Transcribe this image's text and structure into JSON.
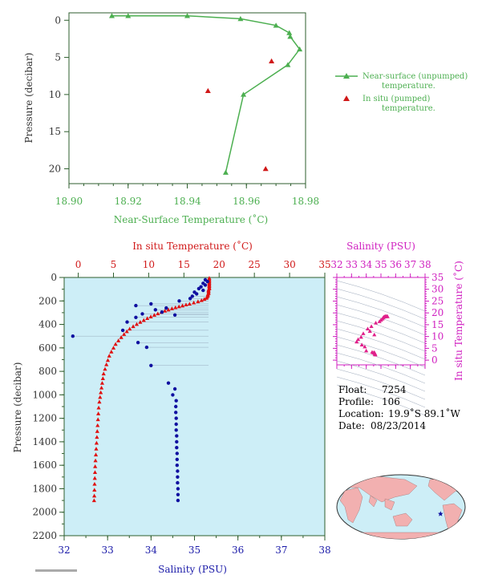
{
  "chart_data": [
    {
      "id": "top",
      "type": "line",
      "xlabel": "Near-Surface Temperature (˚C)",
      "ylabel": "Pressure (decibar)",
      "xlim": [
        18.9,
        18.98
      ],
      "ylim": [
        22,
        -1
      ],
      "xticks": [
        "18.90",
        "18.92",
        "18.94",
        "18.96",
        "18.98"
      ],
      "yticks": [
        "0",
        "5",
        "10",
        "15",
        "20"
      ],
      "colors": {
        "near_surface": "#4caf50",
        "in_situ": "#d01818"
      },
      "series": [
        {
          "name": "Near-surface (unpumped) temperature.",
          "points": [
            [
              18.9145,
              -0.6
            ],
            [
              18.92,
              -0.6
            ],
            [
              18.94,
              -0.6
            ],
            [
              18.958,
              -0.2
            ],
            [
              18.97,
              0.7
            ],
            [
              18.9745,
              1.7
            ],
            [
              18.9748,
              2.2
            ],
            [
              18.978,
              3.9
            ],
            [
              18.974,
              6.0
            ],
            [
              18.959,
              10.0
            ],
            [
              18.953,
              20.5
            ]
          ]
        },
        {
          "name": "In situ (pumped) temperature.",
          "points": [
            [
              18.9685,
              5.5
            ],
            [
              18.947,
              9.5
            ],
            [
              18.9665,
              20.0
            ]
          ]
        }
      ],
      "legend": [
        "Near-surface (unpumped)",
        "temperature.",
        "In situ (pumped)",
        "temperature."
      ]
    },
    {
      "id": "main",
      "type": "scatter",
      "title_top": "In situ Temperature (˚C)",
      "xlabel": "Salinity (PSU)",
      "ylabel": "Pressure (decibar)",
      "temp_lim": [
        -2,
        35
      ],
      "sal_lim": [
        32,
        38
      ],
      "ylim": [
        2200,
        0
      ],
      "temp_ticks": [
        "0",
        "5",
        "10",
        "15",
        "20",
        "25",
        "30",
        "35"
      ],
      "sal_ticks": [
        "32",
        "33",
        "34",
        "35",
        "36",
        "37",
        "38"
      ],
      "y_ticks": [
        "0",
        "200",
        "400",
        "600",
        "800",
        "1000",
        "1200",
        "1400",
        "1600",
        "1800",
        "2000",
        "2200"
      ],
      "colors": {
        "temperature": "#e01010",
        "salinity": "#1010a0",
        "background": "#cdeef7"
      },
      "temperature": [
        [
          18.6,
          5
        ],
        [
          18.6,
          15
        ],
        [
          18.6,
          25
        ],
        [
          18.6,
          35
        ],
        [
          18.6,
          45
        ],
        [
          18.6,
          55
        ],
        [
          18.6,
          65
        ],
        [
          18.6,
          75
        ],
        [
          18.6,
          85
        ],
        [
          18.6,
          95
        ],
        [
          18.5,
          105
        ],
        [
          18.5,
          115
        ],
        [
          18.5,
          125
        ],
        [
          18.5,
          135
        ],
        [
          18.4,
          145
        ],
        [
          18.4,
          155
        ],
        [
          18.3,
          165
        ],
        [
          18.2,
          175
        ],
        [
          17.9,
          185
        ],
        [
          17.5,
          195
        ],
        [
          17.0,
          205
        ],
        [
          16.4,
          215
        ],
        [
          15.8,
          225
        ],
        [
          15.3,
          232
        ],
        [
          14.8,
          240
        ],
        [
          14.3,
          248
        ],
        [
          13.8,
          256
        ],
        [
          13.3,
          265
        ],
        [
          12.8,
          275
        ],
        [
          12.3,
          285
        ],
        [
          11.8,
          296
        ],
        [
          11.3,
          308
        ],
        [
          10.8,
          320
        ],
        [
          10.3,
          334
        ],
        [
          9.8,
          348
        ],
        [
          9.3,
          364
        ],
        [
          8.8,
          380
        ],
        [
          8.3,
          398
        ],
        [
          7.8,
          417
        ],
        [
          7.3,
          438
        ],
        [
          6.9,
          460
        ],
        [
          6.5,
          484
        ],
        [
          6.1,
          510
        ],
        [
          5.7,
          538
        ],
        [
          5.3,
          568
        ],
        [
          5.0,
          600
        ],
        [
          4.7,
          633
        ],
        [
          4.4,
          668
        ],
        [
          4.2,
          705
        ],
        [
          4.0,
          742
        ],
        [
          3.8,
          780
        ],
        [
          3.6,
          820
        ],
        [
          3.5,
          860
        ],
        [
          3.4,
          900
        ],
        [
          3.3,
          940
        ],
        [
          3.2,
          980
        ],
        [
          3.1,
          1020
        ],
        [
          3.0,
          1060
        ],
        [
          2.9,
          1110
        ],
        [
          2.85,
          1160
        ],
        [
          2.8,
          1210
        ],
        [
          2.75,
          1260
        ],
        [
          2.7,
          1310
        ],
        [
          2.65,
          1360
        ],
        [
          2.6,
          1410
        ],
        [
          2.55,
          1460
        ],
        [
          2.5,
          1510
        ],
        [
          2.45,
          1560
        ],
        [
          2.4,
          1610
        ],
        [
          2.38,
          1660
        ],
        [
          2.35,
          1710
        ],
        [
          2.32,
          1760
        ],
        [
          2.3,
          1810
        ],
        [
          2.28,
          1860
        ],
        [
          2.25,
          1900
        ]
      ],
      "salinity": [
        [
          35.25,
          20
        ],
        [
          35.3,
          35
        ],
        [
          35.2,
          50
        ],
        [
          35.25,
          65
        ],
        [
          35.15,
          80
        ],
        [
          35.1,
          95
        ],
        [
          35.2,
          110
        ],
        [
          35.0,
          125
        ],
        [
          35.05,
          140
        ],
        [
          34.95,
          160
        ],
        [
          34.9,
          180
        ],
        [
          34.65,
          200
        ],
        [
          34.0,
          225
        ],
        [
          33.65,
          240
        ],
        [
          34.35,
          260
        ],
        [
          34.1,
          275
        ],
        [
          34.25,
          295
        ],
        [
          33.8,
          310
        ],
        [
          34.55,
          320
        ],
        [
          33.65,
          340
        ],
        [
          33.45,
          380
        ],
        [
          33.35,
          450
        ],
        [
          32.2,
          500
        ],
        [
          33.7,
          555
        ],
        [
          33.9,
          595
        ],
        [
          34.0,
          750
        ],
        [
          34.4,
          900
        ],
        [
          34.55,
          950
        ],
        [
          34.5,
          1000
        ],
        [
          34.58,
          1050
        ],
        [
          34.57,
          1100
        ],
        [
          34.57,
          1150
        ],
        [
          34.58,
          1200
        ],
        [
          34.58,
          1250
        ],
        [
          34.58,
          1300
        ],
        [
          34.59,
          1350
        ],
        [
          34.59,
          1400
        ],
        [
          34.59,
          1450
        ],
        [
          34.6,
          1500
        ],
        [
          34.6,
          1550
        ],
        [
          34.6,
          1600
        ],
        [
          34.61,
          1650
        ],
        [
          34.61,
          1700
        ],
        [
          34.61,
          1750
        ],
        [
          34.62,
          1800
        ],
        [
          34.62,
          1850
        ],
        [
          34.62,
          1900
        ]
      ]
    },
    {
      "id": "ts",
      "type": "scatter",
      "title": "Salinity (PSU)",
      "ylabel": "In situ Temperature (˚C)",
      "sal_lim": [
        32,
        38
      ],
      "temp_lim": [
        -2,
        35
      ],
      "sal_ticks": [
        "32",
        "33",
        "34",
        "35",
        "36",
        "37",
        "38"
      ],
      "temp_ticks": [
        "0",
        "5",
        "10",
        "15",
        "20",
        "25",
        "30",
        "35"
      ],
      "colors": {
        "points": "#e0208a",
        "frame": "#d020c0"
      },
      "points": [
        [
          35.3,
          18.6
        ],
        [
          35.35,
          18.5
        ],
        [
          35.25,
          18.4
        ],
        [
          35.4,
          18.6
        ],
        [
          35.2,
          18.3
        ],
        [
          35.15,
          18.0
        ],
        [
          35.45,
          18.5
        ],
        [
          35.1,
          17.5
        ],
        [
          35.0,
          17.0
        ],
        [
          34.9,
          16.4
        ],
        [
          34.65,
          15.8
        ],
        [
          34.35,
          14.3
        ],
        [
          34.1,
          13.3
        ],
        [
          34.25,
          12.3
        ],
        [
          33.8,
          11.3
        ],
        [
          34.55,
          10.8
        ],
        [
          33.65,
          9.8
        ],
        [
          33.45,
          8.8
        ],
        [
          33.35,
          7.8
        ],
        [
          33.7,
          6.5
        ],
        [
          33.9,
          5.7
        ],
        [
          34.0,
          4.0
        ],
        [
          34.4,
          3.4
        ],
        [
          34.55,
          3.3
        ],
        [
          34.5,
          3.1
        ],
        [
          34.58,
          2.9
        ],
        [
          34.6,
          2.7
        ],
        [
          34.6,
          2.5
        ],
        [
          34.62,
          2.3
        ]
      ]
    }
  ],
  "info": {
    "float_label": "Float:",
    "float_value": "7254",
    "profile_label": "Profile:",
    "profile_value": "106",
    "location_label": "Location:",
    "location_value": "19.9˚S  89.1˚W",
    "date_label": "Date:",
    "date_value": "08/23/2014"
  },
  "map": {
    "float_lat": -19.9,
    "float_lon": -89.1,
    "ocean_color": "#cdeef7",
    "land_color": "#f2b0b0",
    "marker_color": "#1010a0"
  }
}
